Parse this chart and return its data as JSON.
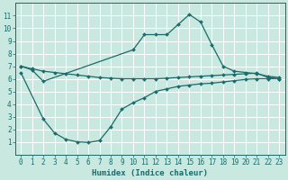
{
  "xlabel": "Humidex (Indice chaleur)",
  "xlim": [
    -0.5,
    23.5
  ],
  "ylim": [
    0,
    12
  ],
  "yticks": [
    1,
    2,
    3,
    4,
    5,
    6,
    7,
    8,
    9,
    10,
    11
  ],
  "xticks": [
    0,
    1,
    2,
    3,
    4,
    5,
    6,
    7,
    8,
    9,
    10,
    11,
    12,
    13,
    14,
    15,
    16,
    17,
    18,
    19,
    20,
    21,
    22,
    23
  ],
  "bg_color": "#c8e8e0",
  "line_color": "#1a6b6b",
  "grid_color": "#ffffff",
  "curve_top_x": [
    0,
    1,
    2,
    10,
    11,
    12,
    13,
    14,
    15,
    16,
    17,
    18,
    19,
    20,
    21,
    22,
    23
  ],
  "curve_top_y": [
    7.0,
    6.7,
    5.8,
    8.3,
    9.5,
    9.5,
    9.5,
    10.3,
    11.1,
    10.5,
    8.7,
    7.0,
    6.6,
    6.5,
    6.4,
    6.2,
    6.1
  ],
  "curve_mid_x": [
    0,
    1,
    2,
    3,
    4,
    5,
    6,
    7,
    8,
    9,
    10,
    11,
    12,
    13,
    14,
    15,
    16,
    17,
    18,
    19,
    20,
    21,
    22,
    23
  ],
  "curve_mid_y": [
    7.0,
    6.8,
    6.6,
    6.5,
    6.4,
    6.3,
    6.2,
    6.1,
    6.05,
    6.0,
    6.0,
    6.0,
    6.0,
    6.05,
    6.1,
    6.15,
    6.2,
    6.25,
    6.3,
    6.35,
    6.4,
    6.45,
    6.1,
    6.0
  ],
  "curve_bot_x": [
    0,
    2,
    3,
    4,
    5,
    6,
    7,
    8,
    9,
    10,
    11,
    12,
    13,
    14,
    15,
    16,
    17,
    18,
    19,
    20,
    21,
    22,
    23
  ],
  "curve_bot_y": [
    6.5,
    2.8,
    1.7,
    1.2,
    1.0,
    0.95,
    1.1,
    2.2,
    3.6,
    4.1,
    4.5,
    5.0,
    5.2,
    5.4,
    5.5,
    5.6,
    5.65,
    5.75,
    5.85,
    5.95,
    6.0,
    6.0,
    6.0
  ]
}
